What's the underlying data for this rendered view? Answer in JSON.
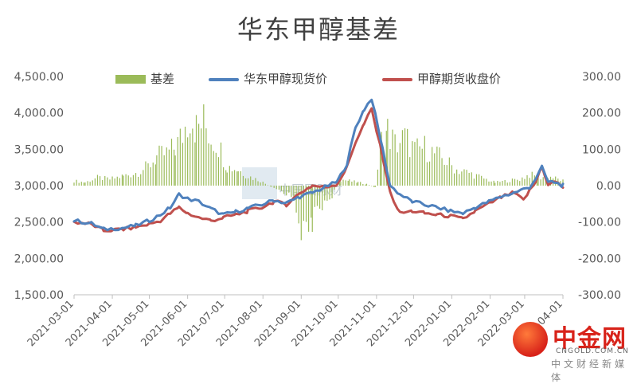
{
  "chart_data": {
    "type": "bar+line",
    "title": "华东甲醇基差",
    "legend_placement": "top",
    "grid": false,
    "y_left": {
      "ylim": [
        1500,
        4500
      ],
      "ticks": [
        "1,500.00",
        "2,000.00",
        "2,500.00",
        "3,000.00",
        "3,500.00",
        "4,000.00",
        "4,500.00"
      ]
    },
    "y_right": {
      "ylim": [
        -300,
        300
      ],
      "ticks": [
        "-300.00",
        "-200.00",
        "-100.00",
        "0.00",
        "100.00",
        "200.00",
        "300.00"
      ]
    },
    "x_ticks": [
      "2021-03-01",
      "2021-04-01",
      "2021-05-01",
      "2021-06-01",
      "2021-07-01",
      "2021-08-01",
      "2021-09-01",
      "2021-10-01",
      "2021-11-01",
      "2021-12-01",
      "2022-01-01",
      "2022-02-01",
      "2022-03-01",
      "2022-04-01"
    ],
    "x_range": [
      "2021-03-01",
      "2022-04-01"
    ],
    "series": [
      {
        "name": "基差",
        "axis": "right",
        "render": "bar",
        "color": "#9BBB59",
        "points": [
          [
            "2021-03-01",
            15
          ],
          [
            "2021-03-10",
            10
          ],
          [
            "2021-03-20",
            25
          ],
          [
            "2021-03-30",
            20
          ],
          [
            "2021-04-10",
            30
          ],
          [
            "2021-04-20",
            40
          ],
          [
            "2021-04-30",
            60
          ],
          [
            "2021-05-07",
            90
          ],
          [
            "2021-05-15",
            100
          ],
          [
            "2021-05-22",
            120
          ],
          [
            "2021-05-28",
            160
          ],
          [
            "2021-06-03",
            230
          ],
          [
            "2021-06-08",
            180
          ],
          [
            "2021-06-14",
            200
          ],
          [
            "2021-06-20",
            150
          ],
          [
            "2021-06-26",
            130
          ],
          [
            "2021-07-03",
            60
          ],
          [
            "2021-07-12",
            50
          ],
          [
            "2021-07-20",
            30
          ],
          [
            "2021-07-30",
            15
          ],
          [
            "2021-08-08",
            -5
          ],
          [
            "2021-08-18",
            -20
          ],
          [
            "2021-08-26",
            -40
          ],
          [
            "2021-09-01",
            -130
          ],
          [
            "2021-09-05",
            -170
          ],
          [
            "2021-09-10",
            -110
          ],
          [
            "2021-09-18",
            -60
          ],
          [
            "2021-09-26",
            -30
          ],
          [
            "2021-10-03",
            20
          ],
          [
            "2021-10-10",
            15
          ],
          [
            "2021-10-17",
            10
          ],
          [
            "2021-10-24",
            5
          ],
          [
            "2021-10-31",
            -5
          ],
          [
            "2021-11-05",
            140
          ],
          [
            "2021-11-10",
            170
          ],
          [
            "2021-11-16",
            130
          ],
          [
            "2021-11-24",
            150
          ],
          [
            "2021-12-02",
            110
          ],
          [
            "2021-12-10",
            120
          ],
          [
            "2021-12-18",
            100
          ],
          [
            "2021-12-26",
            80
          ],
          [
            "2022-01-05",
            50
          ],
          [
            "2022-01-15",
            40
          ],
          [
            "2022-01-25",
            25
          ],
          [
            "2022-02-05",
            10
          ],
          [
            "2022-02-15",
            15
          ],
          [
            "2022-02-25",
            20
          ],
          [
            "2022-03-05",
            35
          ],
          [
            "2022-03-12",
            25
          ],
          [
            "2022-03-20",
            30
          ],
          [
            "2022-03-28",
            20
          ],
          [
            "2022-04-01",
            15
          ]
        ]
      },
      {
        "name": "华东甲醇现货价",
        "axis": "left",
        "render": "line",
        "color": "#4F81BD",
        "points": [
          [
            "2021-03-01",
            2520
          ],
          [
            "2021-03-15",
            2480
          ],
          [
            "2021-03-25",
            2400
          ],
          [
            "2021-04-10",
            2420
          ],
          [
            "2021-04-20",
            2450
          ],
          [
            "2021-05-01",
            2520
          ],
          [
            "2021-05-10",
            2600
          ],
          [
            "2021-05-18",
            2700
          ],
          [
            "2021-05-25",
            2880
          ],
          [
            "2021-06-01",
            2820
          ],
          [
            "2021-06-10",
            2780
          ],
          [
            "2021-06-20",
            2680
          ],
          [
            "2021-06-30",
            2600
          ],
          [
            "2021-07-10",
            2640
          ],
          [
            "2021-07-20",
            2690
          ],
          [
            "2021-07-31",
            2740
          ],
          [
            "2021-08-10",
            2800
          ],
          [
            "2021-08-20",
            2760
          ],
          [
            "2021-08-31",
            2850
          ],
          [
            "2021-09-10",
            2900
          ],
          [
            "2021-09-20",
            2980
          ],
          [
            "2021-09-30",
            3050
          ],
          [
            "2021-10-08",
            3300
          ],
          [
            "2021-10-15",
            3800
          ],
          [
            "2021-10-22",
            4050
          ],
          [
            "2021-10-28",
            4200
          ],
          [
            "2021-11-01",
            3900
          ],
          [
            "2021-11-06",
            3500
          ],
          [
            "2021-11-12",
            3000
          ],
          [
            "2021-11-20",
            2880
          ],
          [
            "2021-11-30",
            2780
          ],
          [
            "2021-12-10",
            2740
          ],
          [
            "2021-12-20",
            2700
          ],
          [
            "2021-12-31",
            2650
          ],
          [
            "2022-01-10",
            2620
          ],
          [
            "2022-01-20",
            2700
          ],
          [
            "2022-01-31",
            2780
          ],
          [
            "2022-02-10",
            2850
          ],
          [
            "2022-02-20",
            2900
          ],
          [
            "2022-02-28",
            2950
          ],
          [
            "2022-03-05",
            2980
          ],
          [
            "2022-03-10",
            3100
          ],
          [
            "2022-03-15",
            3250
          ],
          [
            "2022-03-20",
            3050
          ],
          [
            "2022-03-25",
            3050
          ],
          [
            "2022-04-01",
            3000
          ]
        ]
      },
      {
        "name": "甲醇期货收盘价",
        "axis": "left",
        "render": "line",
        "color": "#C0504D",
        "points": [
          [
            "2021-03-01",
            2500
          ],
          [
            "2021-03-15",
            2470
          ],
          [
            "2021-03-25",
            2380
          ],
          [
            "2021-04-10",
            2400
          ],
          [
            "2021-04-20",
            2430
          ],
          [
            "2021-05-01",
            2470
          ],
          [
            "2021-05-10",
            2520
          ],
          [
            "2021-05-18",
            2620
          ],
          [
            "2021-05-25",
            2700
          ],
          [
            "2021-06-01",
            2620
          ],
          [
            "2021-06-10",
            2560
          ],
          [
            "2021-06-20",
            2520
          ],
          [
            "2021-06-30",
            2560
          ],
          [
            "2021-07-10",
            2600
          ],
          [
            "2021-07-20",
            2650
          ],
          [
            "2021-07-31",
            2700
          ],
          [
            "2021-08-10",
            2780
          ],
          [
            "2021-08-20",
            2740
          ],
          [
            "2021-08-31",
            2900
          ],
          [
            "2021-09-10",
            3000
          ],
          [
            "2021-09-20",
            2980
          ],
          [
            "2021-09-30",
            3020
          ],
          [
            "2021-10-08",
            3250
          ],
          [
            "2021-10-15",
            3600
          ],
          [
            "2021-10-22",
            3850
          ],
          [
            "2021-10-28",
            4050
          ],
          [
            "2021-11-01",
            3750
          ],
          [
            "2021-11-06",
            3400
          ],
          [
            "2021-11-12",
            2900
          ],
          [
            "2021-11-20",
            2620
          ],
          [
            "2021-11-30",
            2650
          ],
          [
            "2021-12-10",
            2620
          ],
          [
            "2021-12-20",
            2600
          ],
          [
            "2021-12-31",
            2580
          ],
          [
            "2022-01-10",
            2540
          ],
          [
            "2022-01-20",
            2650
          ],
          [
            "2022-01-31",
            2750
          ],
          [
            "2022-02-10",
            2840
          ],
          [
            "2022-02-20",
            2900
          ],
          [
            "2022-02-28",
            2800
          ],
          [
            "2022-03-05",
            2930
          ],
          [
            "2022-03-10",
            3050
          ],
          [
            "2022-03-15",
            3280
          ],
          [
            "2022-03-20",
            3000
          ],
          [
            "2022-03-25",
            3060
          ],
          [
            "2022-04-01",
            2980
          ]
        ]
      }
    ]
  },
  "watermark": {
    "text": "中国国际财"
  },
  "logo": {
    "name": "中金网",
    "domain": "CNGOLD.COM.CN",
    "sub": "中文财经新媒体"
  }
}
